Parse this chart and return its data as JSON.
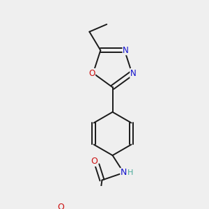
{
  "bg_color": "#efefef",
  "bond_color": "#1a1a1a",
  "bond_width": 1.4,
  "dbo": 0.012,
  "atom_colors": {
    "N": "#1010cc",
    "O": "#cc1010",
    "H": "#4aaa9a"
  },
  "font_size": 8.5
}
